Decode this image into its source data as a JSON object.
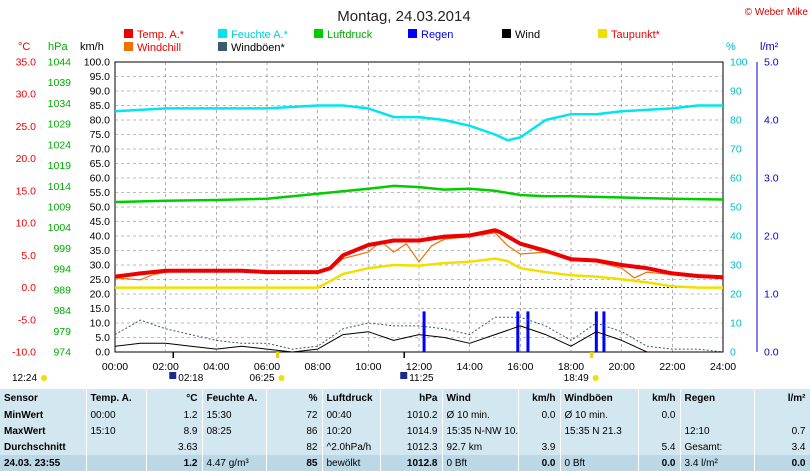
{
  "title": "Montag, 24.03.2014",
  "credit": "© Weber Mike",
  "colors": {
    "temp": "#ee0000",
    "feuchte": "#00e5f0",
    "druck": "#00cc00",
    "regen": "#0000ff",
    "wind": "#000000",
    "taupunkt": "#f0e000",
    "windchill": "#f07000",
    "windboeen": "#3a5a6a"
  },
  "axes": {
    "temp": {
      "unit": "°C",
      "ticks": [
        "35.0",
        "30.0",
        "25.0",
        "20.0",
        "15.0",
        "10.0",
        "5.0",
        "0.0",
        "-5.0",
        "-10.0"
      ],
      "range": [
        -10,
        35
      ]
    },
    "druck": {
      "unit": "hPa",
      "ticks": [
        "1044",
        "1039",
        "1034",
        "1029",
        "1024",
        "1019",
        "1014",
        "1009",
        "1004",
        "999",
        "994",
        "989",
        "984",
        "979",
        "974"
      ],
      "range": [
        974,
        1044
      ]
    },
    "wind": {
      "unit": "km/h",
      "ticks": [
        "100.0",
        "95.0",
        "90.0",
        "85.0",
        "80.0",
        "75.0",
        "70.0",
        "65.0",
        "60.0",
        "55.0",
        "50.0",
        "45.0",
        "40.0",
        "35.0",
        "30.0",
        "25.0",
        "20.0",
        "15.0",
        "10.0",
        "5.0",
        "0.0"
      ],
      "range": [
        0,
        100
      ]
    },
    "feuchte": {
      "unit": "%",
      "ticks": [
        "100",
        "90",
        "80",
        "70",
        "60",
        "50",
        "40",
        "30",
        "20",
        "10",
        "0"
      ],
      "range": [
        0,
        100
      ]
    },
    "regen": {
      "unit": "l/m²",
      "ticks": [
        "5.0",
        "4.0",
        "3.0",
        "2.0",
        "1.0",
        "0.0"
      ],
      "range": [
        0,
        5
      ]
    },
    "x": {
      "ticks": [
        "00:00",
        "02:00",
        "04:00",
        "06:00",
        "08:00",
        "10:00",
        "12:00",
        "14:00",
        "16:00",
        "18:00",
        "20:00",
        "22:00",
        "24:00"
      ],
      "range": [
        0,
        24
      ]
    }
  },
  "sun": {
    "sunrise": "06:25",
    "sunset": "18:49",
    "moonrise": "02:18",
    "moonset": "11:25",
    "left_label": "12:24"
  },
  "chart_data": {
    "type": "line",
    "title": "Montag, 24.03.2014",
    "xlabel": "",
    "ylabel": "°C",
    "xlim": [
      0,
      24
    ],
    "legend": [
      "Temp. A.*",
      "Feuchte A.*",
      "Luftdruck",
      "Regen",
      "Wind",
      "Taupunkt*",
      "Windchill",
      "Windböen*"
    ],
    "series": [
      {
        "name": "Temp. A.*",
        "axis": "°C",
        "x": [
          0,
          1,
          2,
          3,
          4,
          5,
          6,
          7,
          8,
          8.5,
          9,
          10,
          11,
          12,
          13,
          14,
          15,
          15.2,
          16,
          17,
          18,
          19,
          20,
          21,
          22,
          23,
          24
        ],
        "y": [
          1.7,
          2.2,
          2.6,
          2.6,
          2.6,
          2.6,
          2.4,
          2.4,
          2.4,
          3.0,
          5.0,
          6.6,
          7.3,
          7.3,
          7.9,
          8.1,
          8.9,
          8.6,
          6.8,
          5.7,
          4.4,
          4.2,
          3.5,
          3.0,
          2.2,
          1.8,
          1.6
        ]
      },
      {
        "name": "Feuchte A.*",
        "axis": "%",
        "x": [
          0,
          2,
          4,
          6,
          8,
          9,
          10,
          11,
          12,
          13,
          14,
          15,
          15.5,
          16,
          17,
          18,
          19,
          20,
          22,
          23,
          24
        ],
        "y": [
          83,
          84,
          84,
          84,
          85,
          85,
          84,
          81,
          81,
          80,
          78,
          75,
          73,
          74,
          80,
          82,
          82,
          83,
          84,
          85,
          85
        ]
      },
      {
        "name": "Luftdruck",
        "axis": "hPa",
        "x": [
          0,
          2,
          4,
          6,
          8,
          10,
          11,
          12,
          13,
          14,
          15,
          16,
          17,
          18,
          20,
          22,
          24
        ],
        "y": [
          1010.2,
          1010.5,
          1010.7,
          1011.0,
          1012.2,
          1013.4,
          1014.1,
          1013.8,
          1013.2,
          1013.4,
          1012.9,
          1011.9,
          1011.6,
          1011.6,
          1011.3,
          1011.0,
          1010.8
        ]
      },
      {
        "name": "Taupunkt*",
        "axis": "°C",
        "x": [
          0,
          2,
          4,
          6,
          8,
          8.5,
          9,
          10,
          11,
          12,
          13,
          14,
          15,
          15.5,
          16,
          17,
          18,
          19,
          20,
          21,
          22,
          23,
          24
        ],
        "y": [
          0.0,
          0.0,
          0.0,
          0.0,
          0.0,
          1.0,
          2.1,
          3.0,
          3.5,
          3.4,
          3.8,
          4.0,
          4.5,
          4.1,
          3.0,
          2.4,
          1.9,
          1.7,
          1.3,
          0.8,
          0.2,
          0.0,
          0.0
        ]
      },
      {
        "name": "Windchill",
        "axis": "°C",
        "x": [
          0,
          1,
          1.5,
          2,
          3,
          6,
          8,
          8.5,
          9,
          10,
          10.5,
          11,
          11.5,
          12,
          12.5,
          13,
          14,
          15,
          15.5,
          16,
          17,
          18,
          19,
          20,
          20.5,
          21,
          22,
          24
        ],
        "y": [
          1.5,
          1.2,
          2.0,
          2.4,
          2.6,
          2.4,
          2.4,
          2.8,
          4.5,
          5.5,
          7.2,
          5.5,
          6.8,
          4.0,
          6.5,
          7.5,
          7.9,
          8.5,
          6.5,
          5.2,
          5.5,
          4.2,
          4.0,
          3.0,
          1.5,
          2.4,
          2.0,
          1.6
        ]
      },
      {
        "name": "Wind",
        "axis": "km/h",
        "x": [
          0,
          1,
          2,
          3,
          4,
          5,
          6,
          7,
          8,
          9,
          10,
          11,
          12,
          13,
          14,
          15,
          16,
          17,
          18,
          19,
          20,
          21,
          22,
          23,
          24
        ],
        "y": [
          2,
          3,
          3,
          2,
          1,
          2,
          1,
          0,
          1,
          6,
          7,
          4,
          6,
          5,
          3,
          6,
          9,
          6,
          2,
          7,
          4,
          0,
          0,
          0,
          0
        ]
      },
      {
        "name": "Windböen*",
        "axis": "km/h",
        "x": [
          0,
          1,
          2,
          3,
          4,
          5,
          6,
          7,
          8,
          9,
          10,
          11,
          12,
          13,
          14,
          15,
          16,
          17,
          18,
          19,
          20,
          21,
          22,
          23,
          24
        ],
        "y": [
          6,
          11,
          8,
          6,
          4,
          3,
          3,
          1,
          2,
          8,
          10,
          9,
          9,
          8,
          6,
          12,
          12,
          9,
          4,
          10,
          7,
          2,
          1,
          1,
          0
        ]
      },
      {
        "name": "Regen",
        "axis": "l/m²",
        "type": "bar",
        "x": [
          12.2,
          15.9,
          16.3,
          19.0,
          19.3
        ],
        "y": [
          0.7,
          0.7,
          0.7,
          0.7,
          0.7
        ]
      }
    ]
  },
  "table": {
    "head": [
      "Sensor",
      "Temp. A.",
      "°C",
      "Feuchte A.",
      "%",
      "Luftdruck",
      "hPa",
      "Wind",
      "km/h",
      "Windböen",
      "km/h",
      "Regen",
      "l/m²"
    ],
    "rows": [
      [
        "MinWert",
        "00:00",
        "1.2",
        "15:30",
        "72",
        "00:40",
        "1010.2",
        "Ø 10 min.",
        "0.0",
        "Ø 10 min.",
        "0.0",
        "",
        ""
      ],
      [
        "MaxWert",
        "15:10",
        "8.9",
        "08:25",
        "86",
        "10:20",
        "1014.9",
        "15:35    N-NW 10.7",
        "",
        "15:35     N 21.3",
        "",
        "12:10",
        "0.7"
      ],
      [
        "Durchschnitt",
        "",
        "3.63",
        "",
        "82",
        "^2.0hPa/h",
        "1012.3",
        "92.7 km",
        "3.9",
        "",
        "5.4",
        "Gesamt:",
        "3.4"
      ],
      [
        "24.03.  23:55",
        "",
        "1.2",
        "4.47 g/m³",
        "85",
        "bewölkt",
        "1012.8",
        "0 Bft",
        "0.0",
        "0 Bft",
        "0.0",
        "3.4 l/m²",
        "0.0"
      ]
    ]
  }
}
